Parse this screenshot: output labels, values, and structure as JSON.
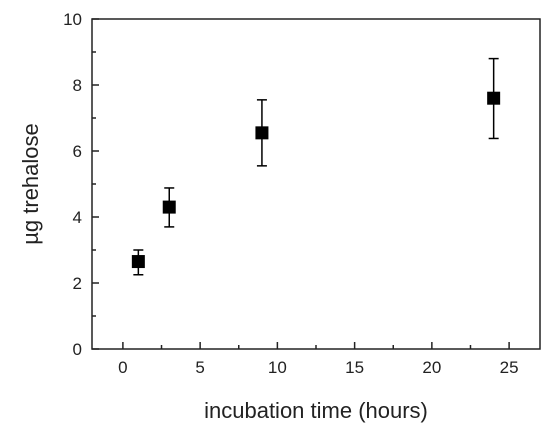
{
  "chart_data": {
    "type": "scatter",
    "xlabel": "incubation time (hours)",
    "ylabel": "µg  trehalose",
    "xlim": [
      -2,
      27
    ],
    "ylim": [
      0,
      10
    ],
    "x_ticks": [
      0,
      5,
      10,
      15,
      20,
      25
    ],
    "y_ticks": [
      0,
      2,
      4,
      6,
      8,
      10
    ],
    "grid": false,
    "legend": "none",
    "marker": "square",
    "marker_color": "#000000",
    "series": [
      {
        "x": [
          1,
          3,
          9,
          24
        ],
        "y": [
          2.65,
          4.3,
          6.55,
          7.6
        ],
        "y_err_low": [
          2.25,
          3.7,
          5.55,
          6.38
        ],
        "y_err_high": [
          3.0,
          4.88,
          7.55,
          8.8
        ]
      }
    ]
  }
}
